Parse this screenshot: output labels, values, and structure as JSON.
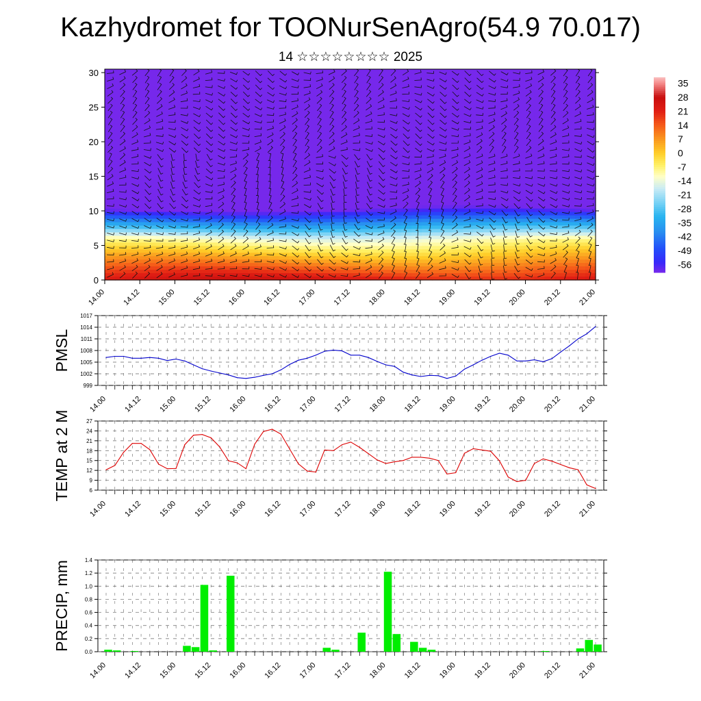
{
  "title": "Kazhydromet for TOONurSenAgro(54.9 70.017)",
  "subtitle": "14 ☆☆☆☆☆☆☆☆ 2025",
  "time_ticks": [
    "14.00",
    "14.12",
    "15.00",
    "15.12",
    "16.00",
    "16.12",
    "17.00",
    "17.12",
    "18.00",
    "18.12",
    "19.00",
    "19.12",
    "20.00",
    "20.12",
    "21.00"
  ],
  "colors": {
    "pmsl_line": "#0000cc",
    "temp_line": "#dd0000",
    "precip_bar": "#00ee00"
  },
  "chart_data": [
    {
      "type": "heatmap",
      "description_of_field": "vertical cross-section with wind barbs",
      "x_ticks": [
        "14.00",
        "14.12",
        "15.00",
        "15.12",
        "16.00",
        "16.12",
        "17.00",
        "17.12",
        "18.00",
        "18.12",
        "19.00",
        "19.12",
        "20.00",
        "20.12",
        "21.00"
      ],
      "y_ticks": [
        0,
        5,
        10,
        15,
        20,
        25,
        30
      ],
      "ylim": [
        0,
        30.5
      ],
      "colorbar": [
        "35",
        "28",
        "21",
        "14",
        "7",
        "0",
        "-7",
        "-14",
        "-21",
        "-28",
        "-35",
        "-42",
        "-49",
        "-56"
      ],
      "colorbar_range": [
        -60,
        38
      ]
    },
    {
      "type": "line",
      "ylabel": "PMSL",
      "y_ticks": [
        999,
        1002,
        1005,
        1008,
        1011,
        1014,
        1017
      ],
      "ylim": [
        999,
        1017
      ],
      "values": [
        1006.2,
        1006.5,
        1006.5,
        1006.0,
        1006.0,
        1006.2,
        1006.0,
        1005.4,
        1005.8,
        1005.3,
        1004.3,
        1003.3,
        1002.7,
        1002.2,
        1001.7,
        1001.0,
        1000.8,
        1001.1,
        1001.6,
        1002.0,
        1003.0,
        1004.4,
        1005.5,
        1006.0,
        1006.8,
        1007.8,
        1008.1,
        1007.9,
        1006.8,
        1006.8,
        1006.2,
        1005.2,
        1004.3,
        1003.9,
        1002.4,
        1001.7,
        1001.3,
        1001.6,
        1001.5,
        1000.8,
        1001.4,
        1003.2,
        1004.3,
        1005.5,
        1006.5,
        1007.3,
        1006.8,
        1005.3,
        1005.3,
        1005.6,
        1005.1,
        1005.9,
        1007.6,
        1009.2,
        1011.0,
        1012.3,
        1014.2
      ]
    },
    {
      "type": "line",
      "ylabel": "TEMP at 2 M",
      "y_ticks": [
        6,
        9,
        12,
        15,
        18,
        21,
        24,
        27
      ],
      "ylim": [
        6,
        27
      ],
      "values": [
        12.2,
        13.5,
        17.5,
        20.2,
        20.2,
        18.3,
        13.9,
        12.5,
        12.6,
        19.8,
        22.7,
        22.9,
        21.9,
        19.1,
        14.9,
        14.3,
        12.5,
        20.0,
        23.8,
        24.5,
        23.0,
        18.5,
        14.0,
        11.8,
        11.5,
        18.2,
        18.0,
        19.8,
        20.6,
        19.0,
        17.1,
        15.2,
        14.1,
        14.6,
        15.0,
        16.0,
        16.0,
        15.7,
        15.0,
        10.9,
        11.3,
        17.2,
        18.6,
        18.2,
        17.8,
        14.9,
        10.0,
        8.6,
        9.0,
        14.1,
        15.5,
        14.8,
        13.8,
        12.8,
        12.2,
        7.6,
        6.5
      ]
    },
    {
      "type": "bar",
      "ylabel": "PRECIP, mm",
      "y_ticks": [
        "0.0",
        "0.2",
        "0.4",
        "0.6",
        "0.8",
        "1.0",
        "1.2",
        "1.4"
      ],
      "ylim": [
        0,
        1.4
      ],
      "values": [
        0.03,
        0.02,
        0,
        0.01,
        0,
        0,
        0,
        0,
        0,
        0.09,
        0.07,
        1.02,
        0.02,
        0,
        1.16,
        0,
        0,
        0,
        0,
        0,
        0,
        0,
        0,
        0,
        0,
        0.06,
        0.03,
        0,
        0,
        0.29,
        0,
        0,
        1.22,
        0.27,
        0,
        0.15,
        0.06,
        0.03,
        0,
        0,
        0,
        0,
        0,
        0,
        0,
        0,
        0,
        0,
        0,
        0,
        0.01,
        0,
        0,
        0,
        0.05,
        0.18,
        0.11
      ]
    }
  ]
}
